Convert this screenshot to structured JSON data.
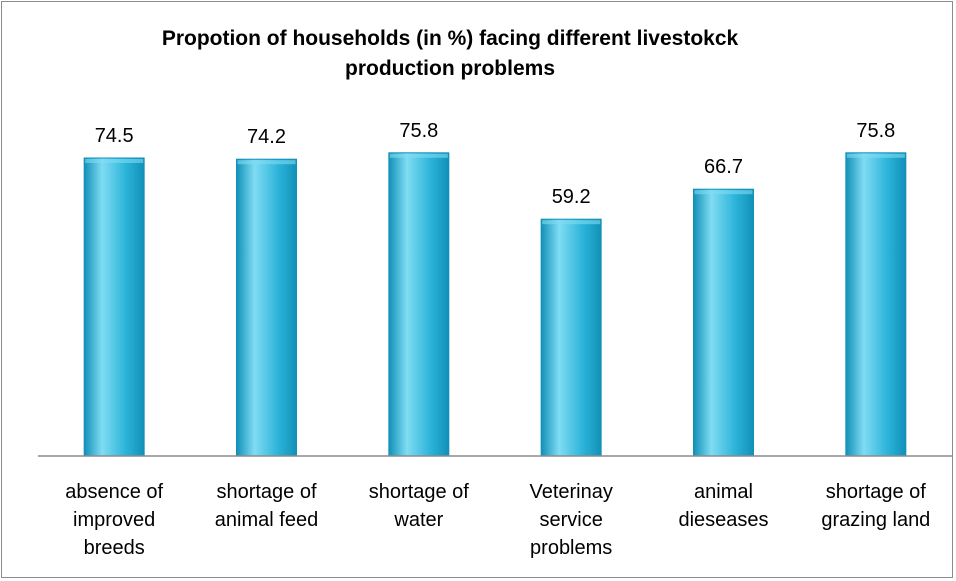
{
  "chart_data": {
    "type": "bar",
    "title_lines": [
      "Propotion of households (in %) facing different  livestokck",
      "production problems"
    ],
    "categories": [
      [
        "absence of",
        "improved",
        "breeds"
      ],
      [
        "shortage of",
        "animal feed"
      ],
      [
        "shortage of",
        "water"
      ],
      [
        "Veterinay",
        "service",
        "problems"
      ],
      [
        "animal",
        "dieseases"
      ],
      [
        "shortage of",
        "grazing land"
      ]
    ],
    "values": [
      74.5,
      74.2,
      75.8,
      59.2,
      66.7,
      75.8
    ],
    "value_labels": [
      "74.5",
      "74.2",
      "75.8",
      "59.2",
      "66.7",
      "75.8"
    ],
    "ylim": [
      0,
      85
    ],
    "grid": false,
    "legend": "none",
    "bar_color": "#2bb3d9",
    "bar_color_light": "#7fdcf3",
    "bar_color_dark": "#1290b8"
  }
}
